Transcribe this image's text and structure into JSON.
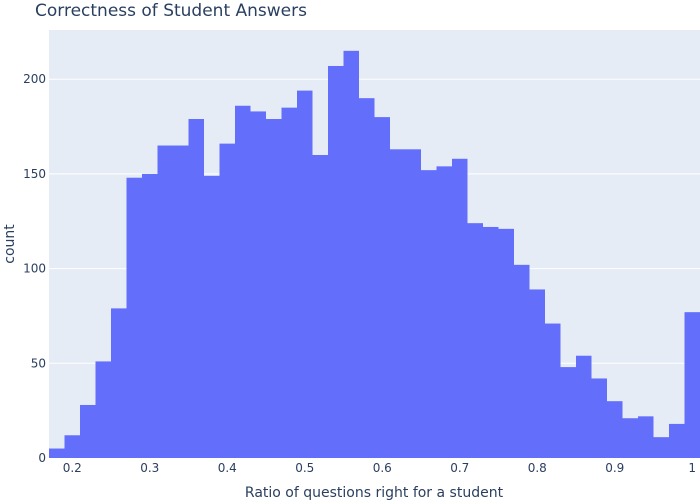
{
  "chart_data": {
    "type": "bar",
    "title": "Correctness of Student Answers",
    "xlabel": "Ratio of questions right for a student",
    "ylabel": "count",
    "bin_width": 0.02,
    "bins_start": [
      0.17,
      0.19,
      0.21,
      0.23,
      0.25,
      0.27,
      0.29,
      0.31,
      0.33,
      0.35,
      0.37,
      0.39,
      0.41,
      0.43,
      0.45,
      0.47,
      0.49,
      0.51,
      0.53,
      0.55,
      0.57,
      0.59,
      0.61,
      0.63,
      0.65,
      0.67,
      0.69,
      0.71,
      0.73,
      0.75,
      0.77,
      0.79,
      0.81,
      0.83,
      0.85,
      0.87,
      0.89,
      0.91,
      0.93,
      0.95,
      0.97,
      0.99
    ],
    "values": [
      5,
      12,
      28,
      51,
      79,
      148,
      150,
      165,
      165,
      179,
      149,
      166,
      186,
      183,
      179,
      185,
      194,
      160,
      207,
      215,
      190,
      180,
      163,
      163,
      152,
      154,
      158,
      124,
      122,
      121,
      102,
      89,
      71,
      48,
      54,
      42,
      30,
      21,
      22,
      11,
      18,
      77
    ],
    "xlim": [
      0.17,
      1.01
    ],
    "ylim": [
      0,
      226
    ],
    "x_ticks": [
      0.2,
      0.3,
      0.4,
      0.5,
      0.6,
      0.7,
      0.8,
      0.9,
      1
    ],
    "x_tick_labels": [
      "0.2",
      "0.3",
      "0.4",
      "0.5",
      "0.6",
      "0.7",
      "0.8",
      "0.9",
      "1"
    ],
    "y_ticks": [
      0,
      50,
      100,
      150,
      200
    ],
    "y_tick_labels": [
      "0",
      "50",
      "100",
      "150",
      "200"
    ],
    "grid": true,
    "colors": {
      "bar": "#636efa",
      "plot_bg": "#e5ecf6",
      "grid": "#ffffff",
      "text": "#2a3f5f"
    }
  }
}
